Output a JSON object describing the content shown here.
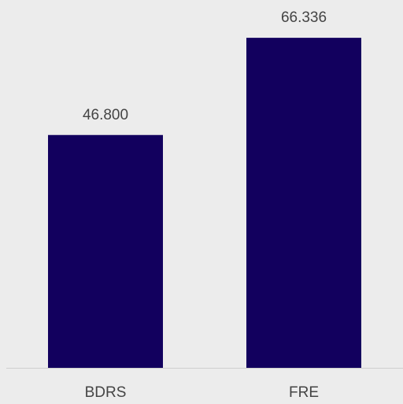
{
  "chart_data": {
    "type": "bar",
    "categories": [
      "BDRS",
      "FRE"
    ],
    "values": [
      46.8,
      66.336
    ],
    "value_labels": [
      "46.800",
      "66.336"
    ],
    "color": "#12005e"
  }
}
